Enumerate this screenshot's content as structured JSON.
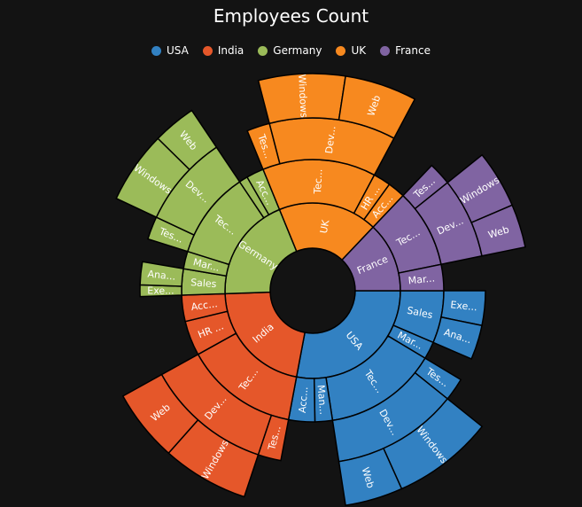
{
  "chart_data": {
    "type": "sunburst",
    "title": "Employees Count",
    "legend_position": "top",
    "series": [
      {
        "name": "USA",
        "color": "#3281C2",
        "children": [
          {
            "name": "Sales",
            "children": [
              {
                "name": "Executive",
                "value": 3
              },
              {
                "name": "Analyst",
                "value": 3
              }
            ]
          },
          {
            "name": "Marketing",
            "value": 2
          },
          {
            "name": "Technical",
            "children": [
              {
                "name": "Testers",
                "value": 2
              },
              {
                "name": "Developers",
                "children": [
                  {
                    "name": "Windows",
                    "value": 7
                  },
                  {
                    "name": "Web",
                    "value": 4
                  }
                ]
              }
            ]
          },
          {
            "name": "Management",
            "value": 2
          },
          {
            "name": "Accounts",
            "value": 3
          }
        ]
      },
      {
        "name": "India",
        "color": "#E5572A",
        "children": [
          {
            "name": "Technical",
            "children": [
              {
                "name": "Testers",
                "value": 2
              },
              {
                "name": "Developers",
                "children": [
                  {
                    "name": "Windows",
                    "value": 6
                  },
                  {
                    "name": "Web",
                    "value": 5
                  }
                ]
              }
            ]
          },
          {
            "name": "HR Executives",
            "value": 4
          },
          {
            "name": "Accounts",
            "value": 3
          }
        ]
      },
      {
        "name": "Germany",
        "color": "#9BBB59",
        "children": [
          {
            "name": "Sales",
            "children": [
              {
                "name": "Executive",
                "value": 1
              },
              {
                "name": "Analyst",
                "value": 2
              }
            ]
          },
          {
            "name": "Marketing",
            "value": 2
          },
          {
            "name": "Technical",
            "children": [
              {
                "name": "Testers",
                "value": 2
              },
              {
                "name": "Developers",
                "children": [
                  {
                    "name": "Windows",
                    "value": 5
                  },
                  {
                    "name": "Web",
                    "value": 3
                  }
                ]
              }
            ]
          },
          {
            "name": "Management",
            "value": 1
          },
          {
            "name": "Accounts",
            "value": 2
          }
        ]
      },
      {
        "name": "UK",
        "color": "#F7891F",
        "children": [
          {
            "name": "Technical",
            "children": [
              {
                "name": "Testers",
                "value": 2
              },
              {
                "name": "Developers",
                "children": [
                  {
                    "name": "Windows",
                    "value": 6
                  },
                  {
                    "name": "Web",
                    "value": 5
                  }
                ]
              }
            ]
          },
          {
            "name": "HR Executives",
            "value": 2
          },
          {
            "name": "Accounts",
            "value": 2
          }
        ]
      },
      {
        "name": "France",
        "color": "#8064A2",
        "children": [
          {
            "name": "Technical",
            "children": [
              {
                "name": "Testers",
                "value": 2
              },
              {
                "name": "Developers",
                "children": [
                  {
                    "name": "Windows",
                    "value": 4
                  },
                  {
                    "name": "Web",
                    "value": 3
                  }
                ]
              }
            ]
          },
          {
            "name": "Marketing",
            "value": 3
          }
        ]
      }
    ]
  }
}
